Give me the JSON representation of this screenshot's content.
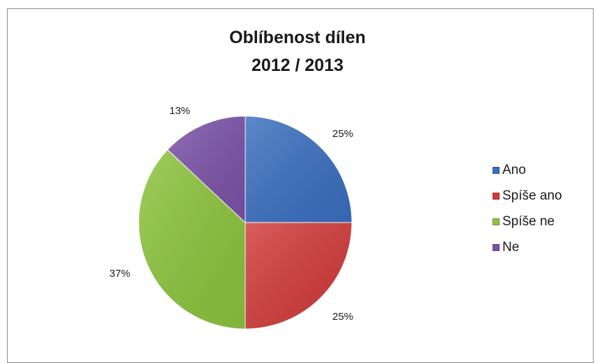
{
  "chart_data": {
    "type": "pie",
    "title_lines": [
      "Oblíbenost dílen",
      "2012 / 2013"
    ],
    "slices": [
      {
        "label": "Ano",
        "value": 25,
        "display": "25%",
        "color": "#3a6fc0"
      },
      {
        "label": "Spíše ano",
        "value": 25,
        "display": "25%",
        "color": "#d23a3a"
      },
      {
        "label": "Spíše ne",
        "value": 37,
        "display": "37%",
        "color": "#8cc43c"
      },
      {
        "label": "Ne",
        "value": 13,
        "display": "13%",
        "color": "#7b52a8"
      }
    ],
    "legend_position": "right"
  }
}
